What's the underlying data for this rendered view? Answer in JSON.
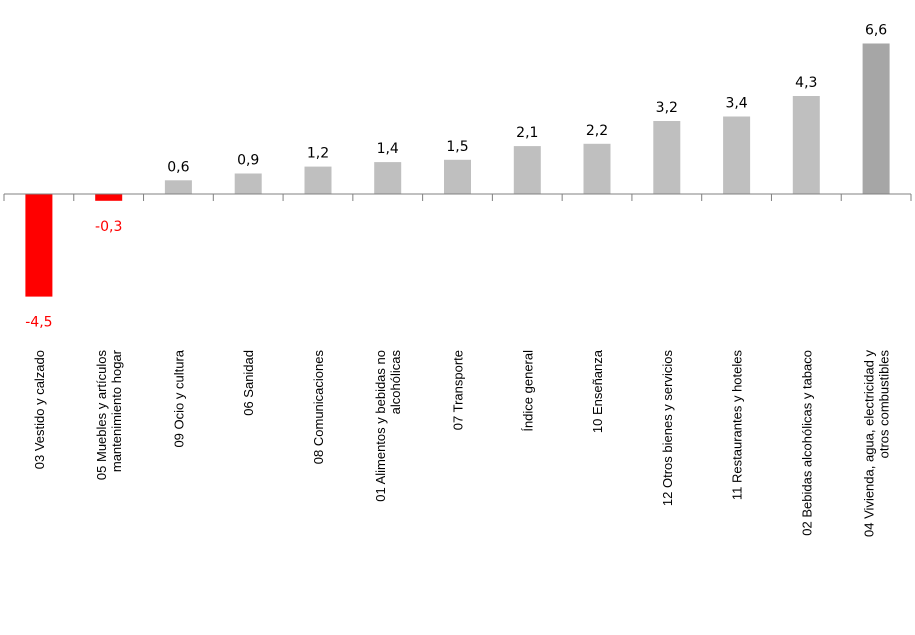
{
  "chart_data": {
    "type": "bar",
    "categories": [
      [
        "03 Vestido y calzado"
      ],
      [
        "05 Muebles y artículos",
        "mantenimiento hogar"
      ],
      [
        "09 Ocio y cultura"
      ],
      [
        "06 Sanidad"
      ],
      [
        "08 Comunicaciones"
      ],
      [
        "01 Alimentos y bebidas no",
        "alcohólicas"
      ],
      [
        "07 Transporte"
      ],
      [
        "Índice general"
      ],
      [
        "10 Enseñanza"
      ],
      [
        "12 Otros bienes y servicios"
      ],
      [
        "11 Restaurantes y hoteles"
      ],
      [
        "02 Bebidas alcohólicas y tabaco"
      ],
      [
        "04 Vivienda, agua, electricidad y",
        "otros combustibles"
      ]
    ],
    "values": [
      -4.5,
      -0.3,
      0.6,
      0.9,
      1.2,
      1.4,
      1.5,
      2.1,
      2.2,
      3.2,
      3.4,
      4.3,
      6.6
    ],
    "value_labels": [
      "-4,5",
      "-0,3",
      "0,6",
      "0,9",
      "1,2",
      "1,4",
      "1,5",
      "2,1",
      "2,2",
      "3,2",
      "3,4",
      "4,3",
      "6,6"
    ],
    "colors": {
      "negative": "#ff0000",
      "positive": "#bfbfbf",
      "highlight": "#a6a6a6",
      "axis": "#808080",
      "label_positive": "#000000",
      "label_negative": "#ff0000"
    },
    "highlight_index": 12,
    "grid": false,
    "legend": "none"
  }
}
